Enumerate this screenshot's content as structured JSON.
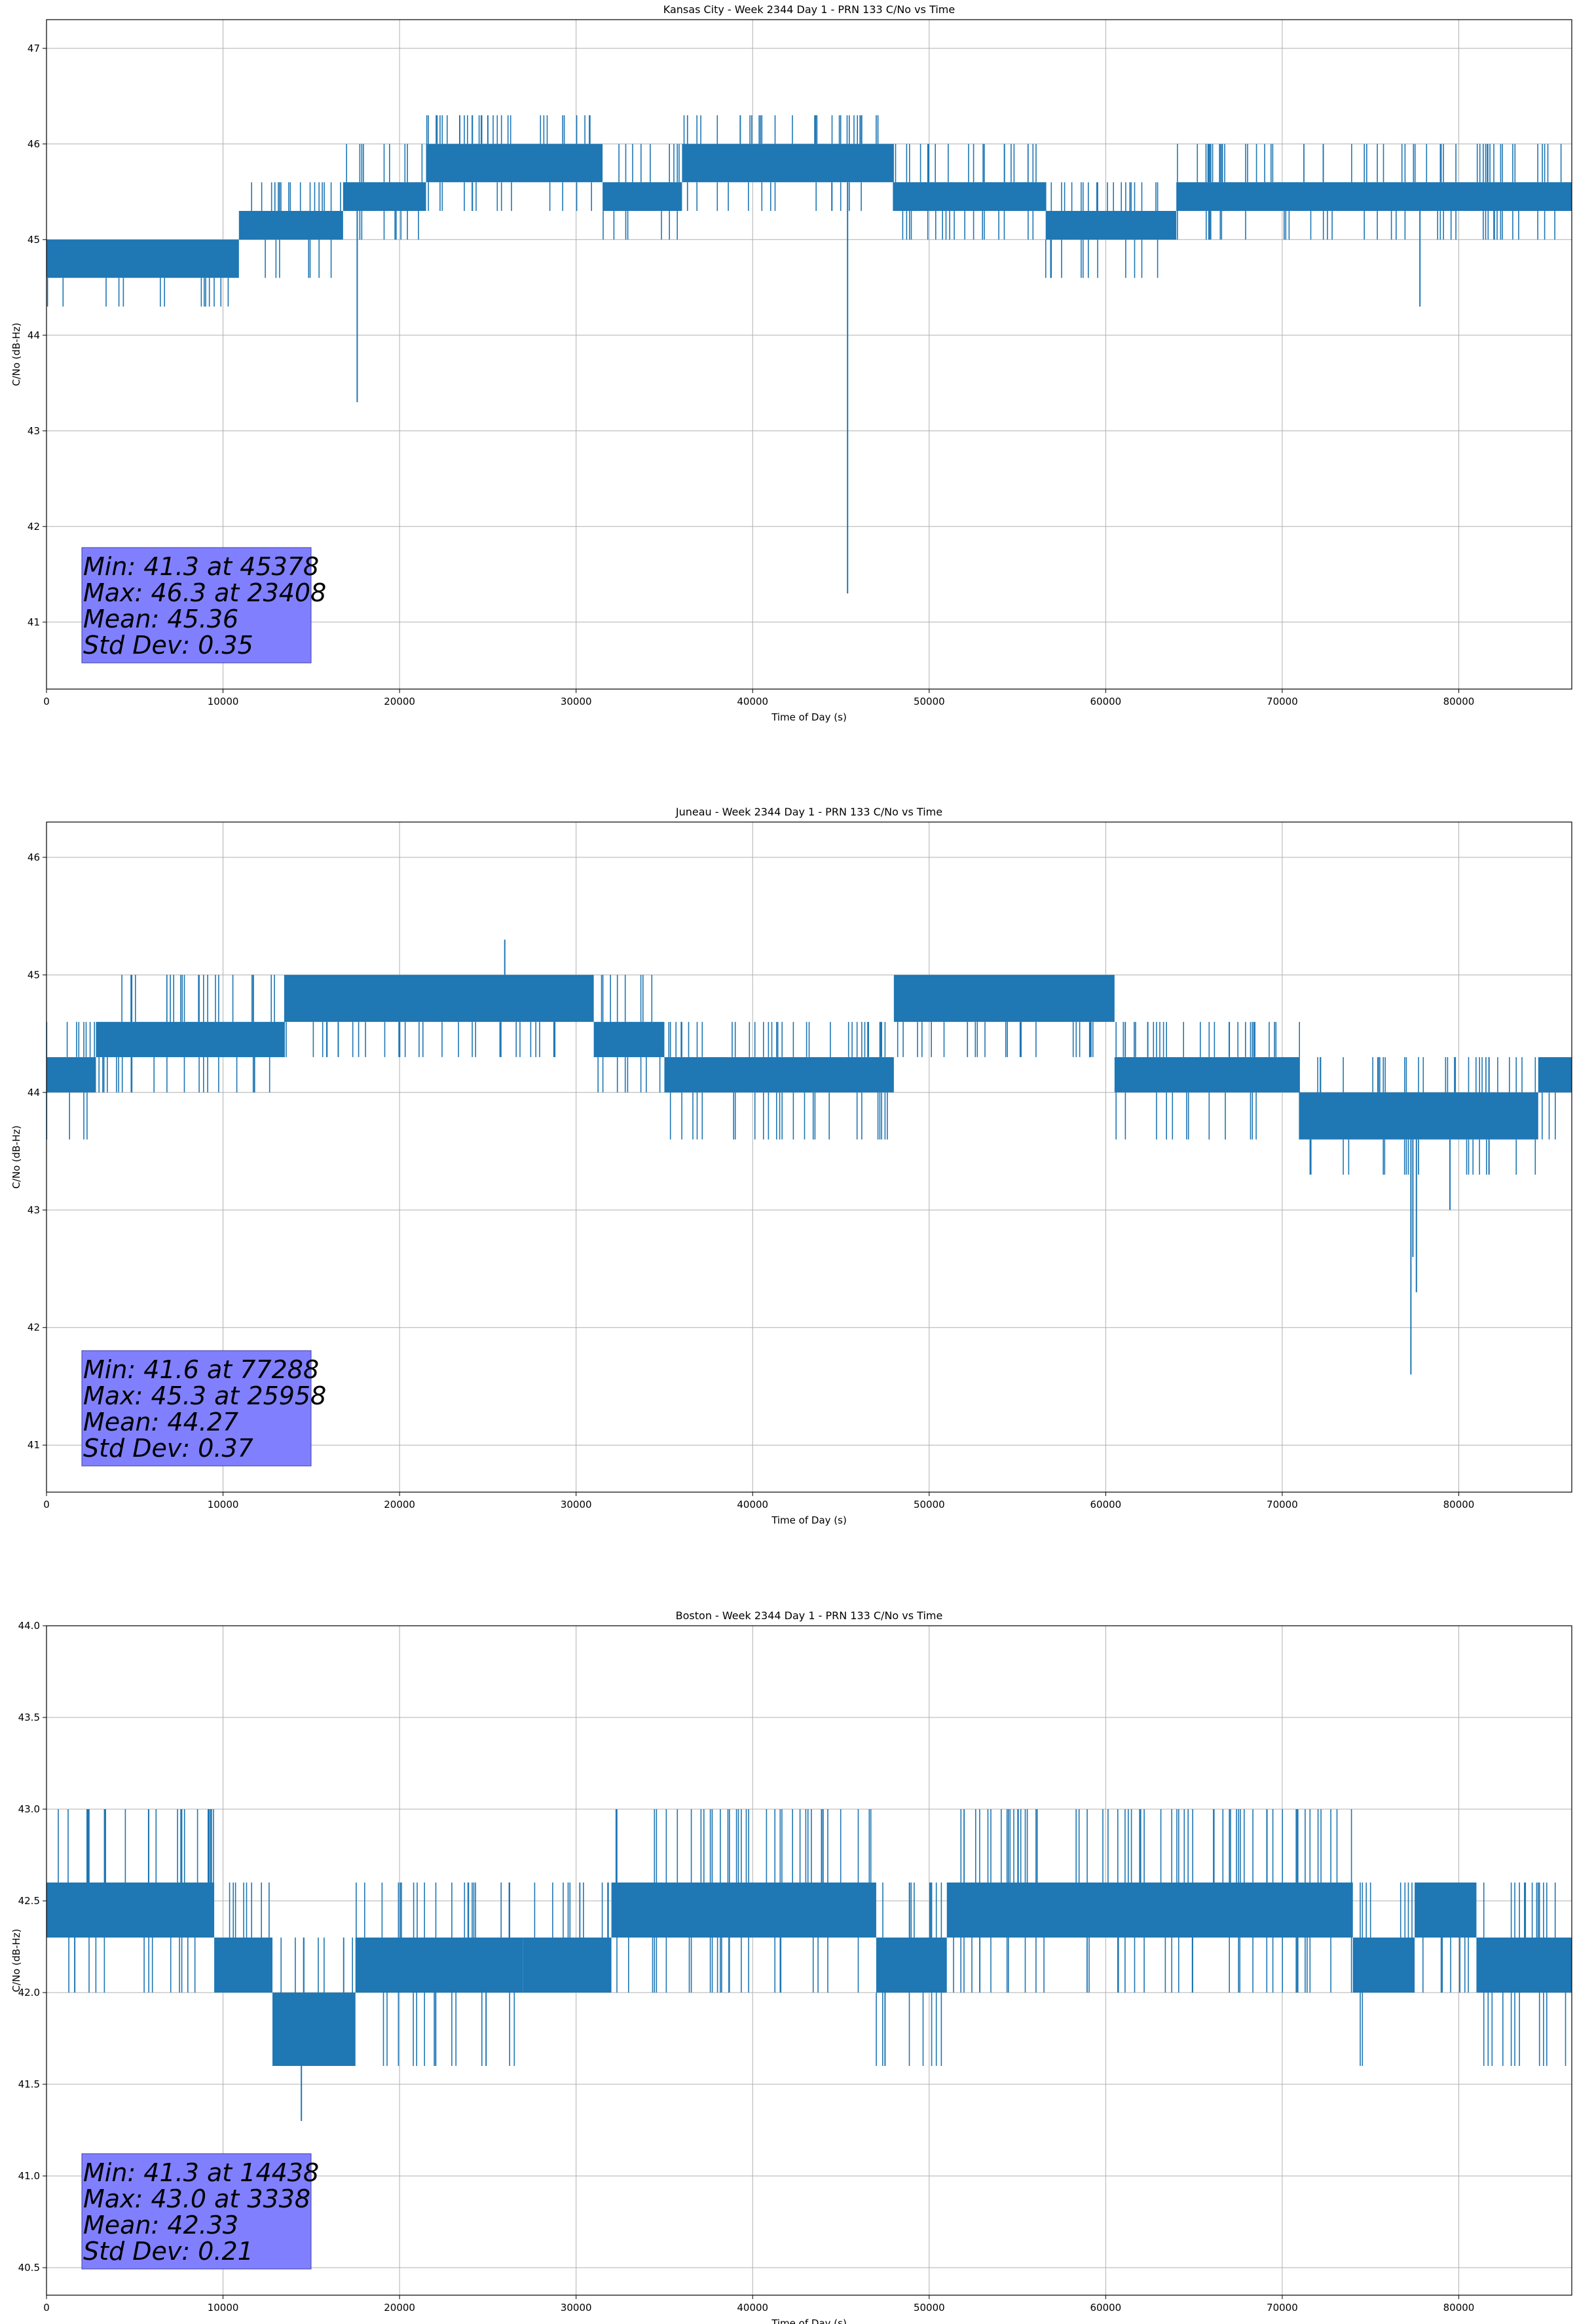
{
  "figure": {
    "line_color": "#1f77b4",
    "grid_color": "#b0b0b0",
    "statsbox_color": "#8080ff"
  },
  "chart_data": [
    {
      "type": "line",
      "title": "Kansas City - Week 2344 Day 1 - PRN 133 C/No vs Time",
      "xlabel": "Time of Day (s)",
      "ylabel": "C/No (dB-Hz)",
      "xlim": [
        0,
        86400
      ],
      "ylim": [
        40.3,
        47.3
      ],
      "xticks": [
        0,
        10000,
        20000,
        30000,
        40000,
        50000,
        60000,
        70000,
        80000
      ],
      "yticks": [
        41,
        42,
        43,
        44,
        45,
        46,
        47
      ],
      "ytick_decimals": 0,
      "grid": true,
      "stats": [
        "Min: 41.3 at 45378",
        "Max: 46.3 at 23408",
        "Mean: 45.36",
        "Std Dev: 0.35"
      ],
      "segments": [
        {
          "x0": 0,
          "x1": 10900,
          "lo": 44.6,
          "hi": 45.0,
          "dlo": 44.3,
          "dhi": 45.0
        },
        {
          "x0": 10900,
          "x1": 16800,
          "lo": 45.0,
          "hi": 45.3,
          "dlo": 44.6,
          "dhi": 45.6
        },
        {
          "x0": 16800,
          "x1": 21500,
          "lo": 45.3,
          "hi": 45.6,
          "dlo": 45.0,
          "dhi": 46.0
        },
        {
          "x0": 21500,
          "x1": 31500,
          "lo": 45.6,
          "hi": 46.0,
          "dlo": 45.3,
          "dhi": 46.3
        },
        {
          "x0": 31500,
          "x1": 36000,
          "lo": 45.3,
          "hi": 45.6,
          "dlo": 45.0,
          "dhi": 46.0
        },
        {
          "x0": 36000,
          "x1": 48000,
          "lo": 45.6,
          "hi": 46.0,
          "dlo": 45.3,
          "dhi": 46.3
        },
        {
          "x0": 48000,
          "x1": 56600,
          "lo": 45.3,
          "hi": 45.6,
          "dlo": 45.0,
          "dhi": 46.0
        },
        {
          "x0": 56600,
          "x1": 64000,
          "lo": 45.0,
          "hi": 45.3,
          "dlo": 44.6,
          "dhi": 45.6
        },
        {
          "x0": 64000,
          "x1": 86400,
          "lo": 45.3,
          "hi": 45.6,
          "dlo": 45.0,
          "dhi": 46.0
        }
      ],
      "spikes": [
        [
          17600,
          43.3
        ],
        [
          45378,
          41.3
        ],
        [
          77800,
          44.3
        ],
        [
          23408,
          46.3
        ],
        [
          25000,
          46.3
        ],
        [
          39300,
          46.3
        ]
      ]
    },
    {
      "type": "line",
      "title": "Juneau - Week 2344 Day 1 - PRN 133 C/No vs Time",
      "xlabel": "Time of Day (s)",
      "ylabel": "C/No (dB-Hz)",
      "xlim": [
        0,
        86400
      ],
      "ylim": [
        40.6,
        46.3
      ],
      "xticks": [
        0,
        10000,
        20000,
        30000,
        40000,
        50000,
        60000,
        70000,
        80000
      ],
      "yticks": [
        41,
        42,
        43,
        44,
        45,
        46
      ],
      "ytick_decimals": 0,
      "grid": true,
      "stats": [
        "Min: 41.6 at 77288",
        "Max: 45.3 at 25958",
        "Mean: 44.27",
        "Std Dev: 0.37"
      ],
      "segments": [
        {
          "x0": 0,
          "x1": 2800,
          "lo": 44.0,
          "hi": 44.3,
          "dlo": 43.6,
          "dhi": 44.6
        },
        {
          "x0": 2800,
          "x1": 13500,
          "lo": 44.3,
          "hi": 44.6,
          "dlo": 44.0,
          "dhi": 45.0
        },
        {
          "x0": 13500,
          "x1": 31000,
          "lo": 44.6,
          "hi": 45.0,
          "dlo": 44.3,
          "dhi": 45.0
        },
        {
          "x0": 31000,
          "x1": 35000,
          "lo": 44.3,
          "hi": 44.6,
          "dlo": 44.0,
          "dhi": 45.0
        },
        {
          "x0": 35000,
          "x1": 48000,
          "lo": 44.0,
          "hi": 44.3,
          "dlo": 43.6,
          "dhi": 44.6
        },
        {
          "x0": 48000,
          "x1": 60500,
          "lo": 44.6,
          "hi": 45.0,
          "dlo": 44.3,
          "dhi": 45.0
        },
        {
          "x0": 60500,
          "x1": 71000,
          "lo": 44.0,
          "hi": 44.3,
          "dlo": 43.6,
          "dhi": 44.6
        },
        {
          "x0": 71000,
          "x1": 84500,
          "lo": 43.6,
          "hi": 44.0,
          "dlo": 43.3,
          "dhi": 44.3
        },
        {
          "x0": 84500,
          "x1": 86400,
          "lo": 44.0,
          "hi": 44.3,
          "dlo": 43.6,
          "dhi": 44.3
        }
      ],
      "spikes": [
        [
          77288,
          41.6
        ],
        [
          77600,
          42.3
        ],
        [
          77400,
          42.6
        ],
        [
          25958,
          45.3
        ],
        [
          79500,
          43.0
        ]
      ]
    },
    {
      "type": "line",
      "title": "Boston - Week 2344 Day 1 - PRN 133 C/No vs Time",
      "xlabel": "Time of Day (s)",
      "ylabel": "C/No (dB-Hz)",
      "xlim": [
        0,
        86400
      ],
      "ylim": [
        40.35,
        44.0
      ],
      "xticks": [
        0,
        10000,
        20000,
        30000,
        40000,
        50000,
        60000,
        70000,
        80000
      ],
      "yticks": [
        40.5,
        41.0,
        41.5,
        42.0,
        42.5,
        43.0,
        43.5,
        44.0
      ],
      "ytick_decimals": 1,
      "grid": true,
      "stats": [
        "Min: 41.3 at 14438",
        "Max: 43.0 at 3338",
        "Mean: 42.33",
        "Std Dev: 0.21"
      ],
      "segments": [
        {
          "x0": 0,
          "x1": 9500,
          "lo": 42.3,
          "hi": 42.6,
          "dlo": 42.0,
          "dhi": 43.0
        },
        {
          "x0": 9500,
          "x1": 12800,
          "lo": 42.0,
          "hi": 42.3,
          "dlo": 42.0,
          "dhi": 42.6
        },
        {
          "x0": 12800,
          "x1": 17500,
          "lo": 41.6,
          "hi": 42.0,
          "dlo": 41.6,
          "dhi": 42.3
        },
        {
          "x0": 17500,
          "x1": 27000,
          "lo": 42.0,
          "hi": 42.3,
          "dlo": 41.6,
          "dhi": 42.6
        },
        {
          "x0": 27000,
          "x1": 32000,
          "lo": 42.0,
          "hi": 42.3,
          "dlo": 42.0,
          "dhi": 42.6
        },
        {
          "x0": 32000,
          "x1": 47000,
          "lo": 42.3,
          "hi": 42.6,
          "dlo": 42.0,
          "dhi": 43.0
        },
        {
          "x0": 47000,
          "x1": 51000,
          "lo": 42.0,
          "hi": 42.3,
          "dlo": 41.6,
          "dhi": 42.6
        },
        {
          "x0": 51000,
          "x1": 74000,
          "lo": 42.3,
          "hi": 42.6,
          "dlo": 42.0,
          "dhi": 43.0
        },
        {
          "x0": 74000,
          "x1": 77500,
          "lo": 42.0,
          "hi": 42.3,
          "dlo": 41.6,
          "dhi": 42.6
        },
        {
          "x0": 77500,
          "x1": 81000,
          "lo": 42.3,
          "hi": 42.6,
          "dlo": 42.0,
          "dhi": 42.6
        },
        {
          "x0": 81000,
          "x1": 86400,
          "lo": 42.0,
          "hi": 42.3,
          "dlo": 41.6,
          "dhi": 42.6
        }
      ],
      "spikes": [
        [
          14438,
          41.3
        ],
        [
          47500,
          41.6
        ],
        [
          24900,
          41.6
        ],
        [
          3338,
          43.0
        ],
        [
          1600,
          42.0
        ]
      ]
    }
  ]
}
